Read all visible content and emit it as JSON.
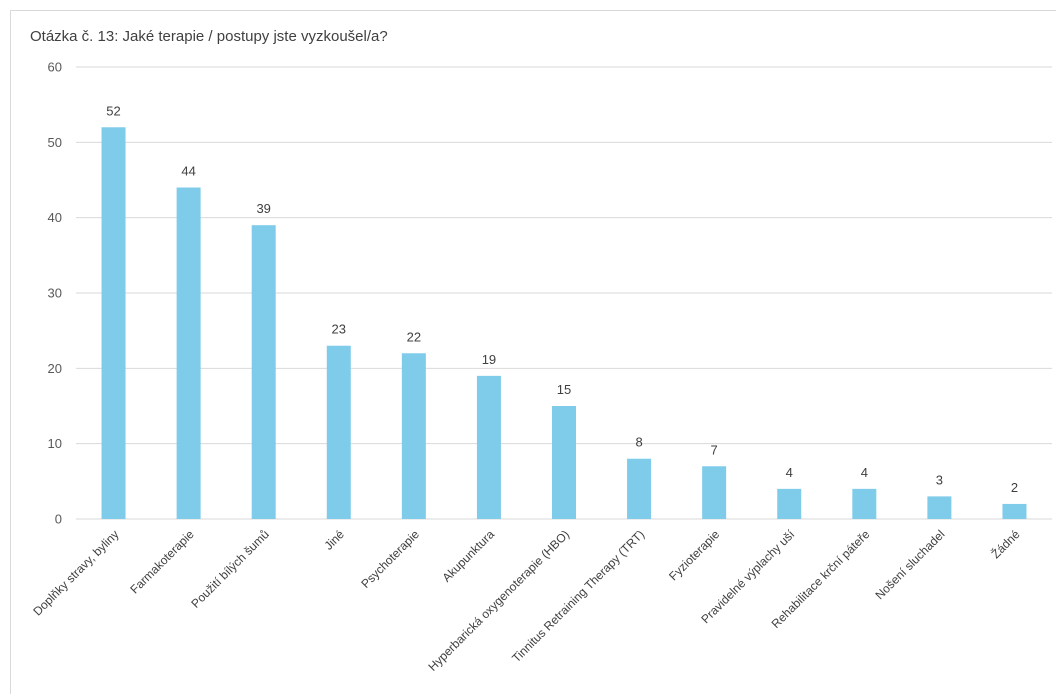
{
  "chart_data": {
    "type": "bar",
    "title": "Otázka č. 13: Jaké terapie / postupy jste vyzkoušel/a?",
    "categories": [
      "Doplňky stravy, byliny",
      "Farmakoterapie",
      "Použití bílých šumů",
      "Jiné",
      "Psychoterapie",
      "Akupunktura",
      "Hyperbarická oxygenoterapie (HBO)",
      "Tinnitus Retraining Therapy (TRT)",
      "Fyzioterapie",
      "Pravidelné výplachy uší",
      "Rehabilitace krční páteře",
      "Nošení sluchadel",
      "Žádné"
    ],
    "values": [
      52,
      44,
      39,
      23,
      22,
      19,
      15,
      8,
      7,
      4,
      4,
      3,
      2
    ],
    "ylim": [
      0,
      60
    ],
    "yticks": [
      0,
      10,
      20,
      30,
      40,
      50,
      60
    ],
    "grid": true,
    "bar_color": "#7fcbea",
    "grid_color": "#d9d9d9"
  }
}
